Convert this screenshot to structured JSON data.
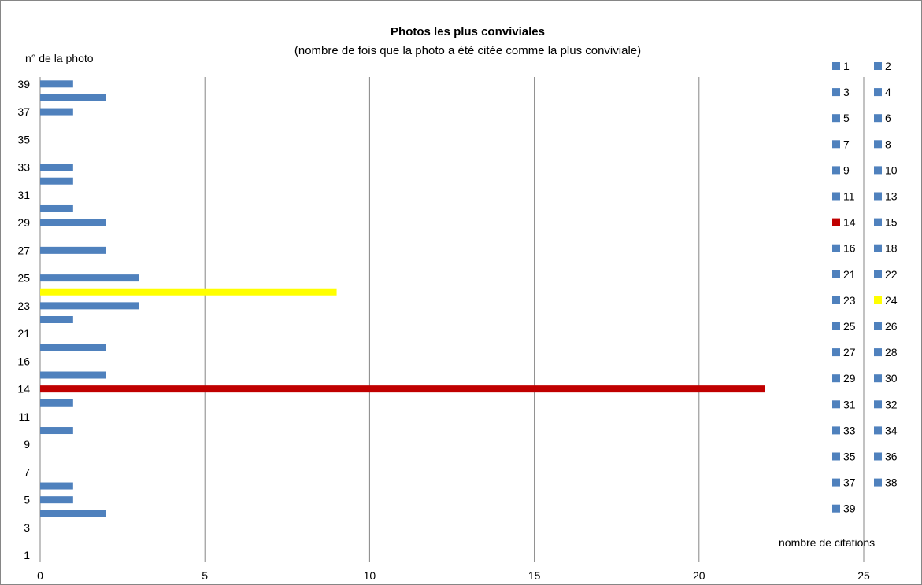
{
  "chart_data": {
    "type": "bar",
    "orientation": "horizontal",
    "title": "Photos les plus conviviales",
    "subtitle": "(nombre de fois que la photo a été citée comme la plus conviviale)",
    "ylabel": "n° de la photo",
    "xlabel": "nombre de citations",
    "xlim": [
      0,
      25
    ],
    "xticks": [
      "0",
      "5",
      "10",
      "15",
      "20",
      "25"
    ],
    "categories": [
      "1",
      "2",
      "3",
      "4",
      "5",
      "6",
      "7",
      "8",
      "9",
      "10",
      "11",
      "13",
      "14",
      "15",
      "16",
      "18",
      "21",
      "22",
      "23",
      "24",
      "25",
      "26",
      "27",
      "28",
      "29",
      "30",
      "31",
      "32",
      "33",
      "34",
      "35",
      "36",
      "37",
      "38",
      "39"
    ],
    "ytick_labels_shown": [
      "1",
      "3",
      "5",
      "7",
      "9",
      "11",
      "14",
      "16",
      "21",
      "23",
      "25",
      "27",
      "29",
      "31",
      "33",
      "35",
      "37",
      "39"
    ],
    "values": [
      0,
      0,
      0,
      2,
      1,
      1,
      0,
      0,
      0,
      1,
      0,
      1,
      22,
      2,
      0,
      2,
      0,
      1,
      3,
      9,
      3,
      0,
      2,
      0,
      2,
      1,
      0,
      1,
      1,
      0,
      0,
      0,
      1,
      2,
      1
    ],
    "grid": "vertical",
    "legend_position": "right",
    "colors": {
      "default": "#4F81BD",
      "14": "#C00000",
      "24": "#FFFF00",
      "grid": "#868686",
      "border": "#868686"
    }
  }
}
